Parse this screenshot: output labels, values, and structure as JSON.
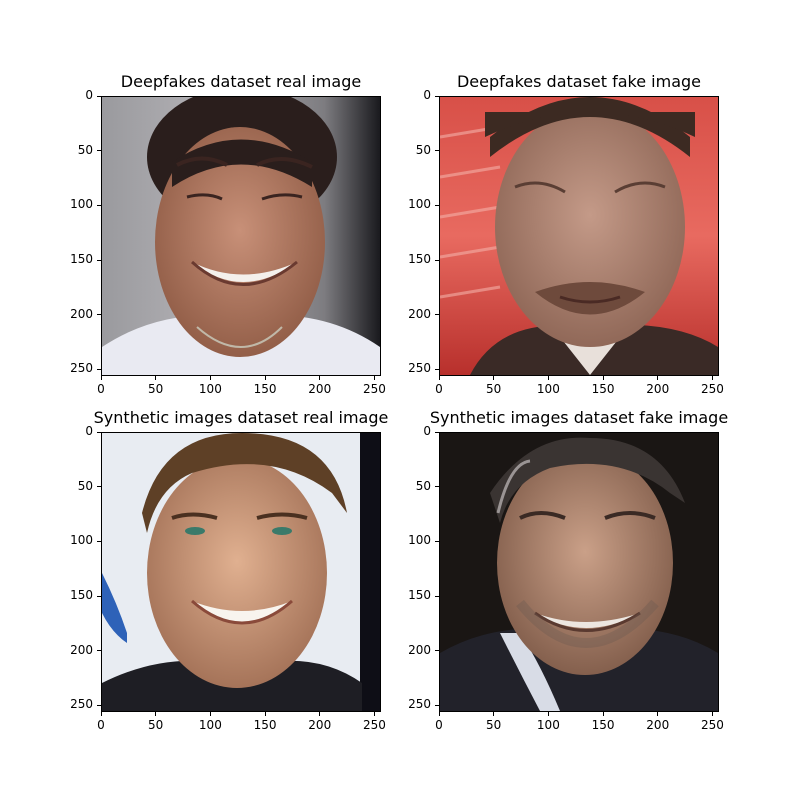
{
  "figure": {
    "panels": [
      {
        "id": "p1",
        "title": "Deepfakes dataset real image",
        "image_desc": "smiling woman face crop",
        "x_ticks": [
          "0",
          "50",
          "100",
          "150",
          "200",
          "250"
        ],
        "y_ticks": [
          "0",
          "50",
          "100",
          "150",
          "200",
          "250"
        ]
      },
      {
        "id": "p2",
        "title": "Deepfakes dataset fake image",
        "image_desc": "man with beard, red background",
        "x_ticks": [
          "0",
          "50",
          "100",
          "150",
          "200",
          "250"
        ],
        "y_ticks": [
          "0",
          "50",
          "100",
          "150",
          "200",
          "250"
        ]
      },
      {
        "id": "p3",
        "title": "Synthetic images dataset real image",
        "image_desc": "smiling young man face crop",
        "x_ticks": [
          "0",
          "50",
          "100",
          "150",
          "200",
          "250"
        ],
        "y_ticks": [
          "0",
          "50",
          "100",
          "150",
          "200",
          "250"
        ]
      },
      {
        "id": "p4",
        "title": "Synthetic images dataset fake image",
        "image_desc": "smiling older man face crop",
        "x_ticks": [
          "0",
          "50",
          "100",
          "150",
          "200",
          "250"
        ],
        "y_ticks": [
          "0",
          "50",
          "100",
          "150",
          "200",
          "250"
        ]
      }
    ]
  }
}
